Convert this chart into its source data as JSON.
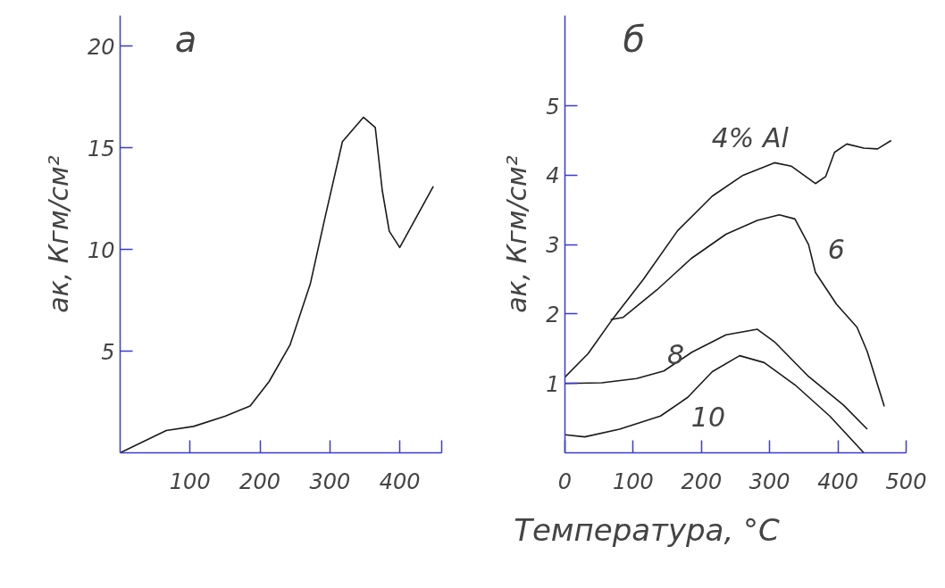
{
  "chart_data": [
    {
      "type": "line",
      "title": "а",
      "ylabel": "aк, Кгм/см²",
      "xlim": [
        0,
        460
      ],
      "ylim": [
        0,
        21.5
      ],
      "xticks": [
        100,
        200,
        300,
        400,
        {
          "value": 460,
          "label": null
        }
      ],
      "yticks": [
        5,
        10,
        15,
        20
      ],
      "grid": false,
      "marker": "none",
      "line_style": "solid",
      "series": [
        {
          "color": "#1a1a1a",
          "x": [
            0,
            66,
            105,
            150,
            186,
            213,
            243,
            272,
            292,
            318,
            348,
            365,
            375,
            385,
            400,
            448
          ],
          "values": [
            0,
            1.1,
            1.3,
            1.8,
            2.3,
            3.5,
            5.3,
            8.3,
            11.4,
            15.3,
            16.5,
            16.0,
            12.9,
            10.9,
            10.1,
            13.1
          ]
        }
      ]
    },
    {
      "type": "line",
      "title": "б",
      "ylabel": "aк, Кгм/см²",
      "xlabel": "Температура, °C",
      "xlim": [
        0,
        500
      ],
      "ylim": [
        0,
        6.3
      ],
      "xticks": [
        0,
        100,
        200,
        300,
        400,
        500
      ],
      "yticks": [
        1,
        2,
        3,
        4,
        5
      ],
      "grid": false,
      "marker": "none",
      "line_style": "solid",
      "series": [
        {
          "name": "4%  Al",
          "color": "#1a1a1a",
          "x": [
            0,
            34,
            70,
            115,
            165,
            216,
            261,
            307,
            332,
            367,
            382,
            395,
            413,
            438,
            458,
            478
          ],
          "values": [
            1.09,
            1.43,
            1.93,
            2.5,
            3.2,
            3.7,
            4.0,
            4.18,
            4.13,
            3.88,
            3.98,
            4.33,
            4.45,
            4.39,
            4.38,
            4.5
          ]
        },
        {
          "name": "6",
          "color": "#1a1a1a",
          "x": [
            67,
            85,
            135,
            185,
            236,
            282,
            314,
            337,
            357,
            367,
            398,
            428,
            443,
            468
          ],
          "values": [
            1.92,
            1.95,
            2.35,
            2.8,
            3.15,
            3.35,
            3.43,
            3.37,
            3.0,
            2.6,
            2.14,
            1.81,
            1.46,
            0.67
          ]
        },
        {
          "name": "8",
          "color": "#1a1a1a",
          "x": [
            0,
            54,
            105,
            145,
            186,
            236,
            282,
            307,
            357,
            408,
            443
          ],
          "values": [
            1.0,
            1.01,
            1.07,
            1.18,
            1.45,
            1.7,
            1.78,
            1.6,
            1.1,
            0.69,
            0.34
          ]
        },
        {
          "name": "10",
          "color": "#1a1a1a",
          "x": [
            0,
            29,
            80,
            140,
            180,
            216,
            256,
            292,
            337,
            388,
            438
          ],
          "values": [
            0.26,
            0.23,
            0.34,
            0.53,
            0.8,
            1.17,
            1.4,
            1.3,
            0.98,
            0.53,
            0
          ]
        }
      ]
    }
  ]
}
